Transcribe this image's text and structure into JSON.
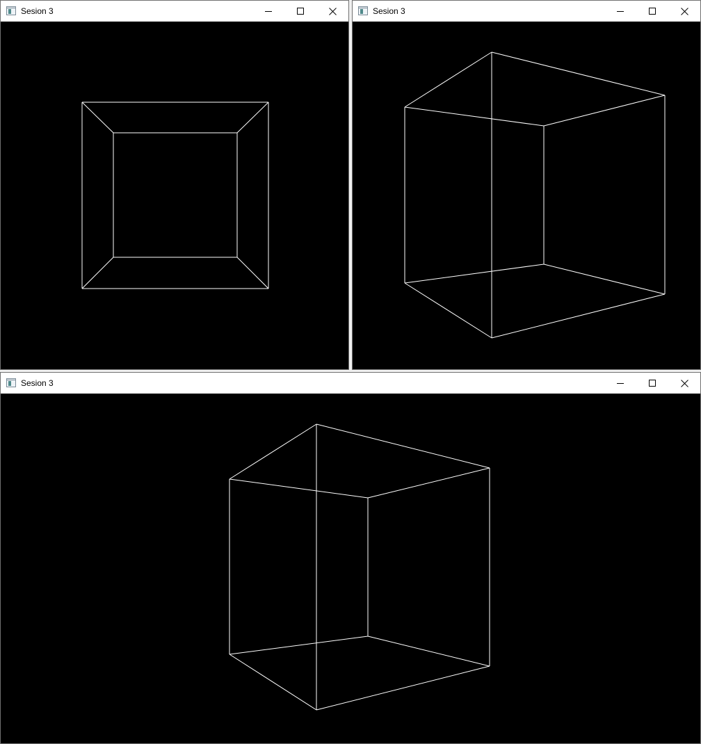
{
  "windows": [
    {
      "id": "win1",
      "title": "Sesion 3",
      "view": "front"
    },
    {
      "id": "win2",
      "title": "Sesion 3",
      "view": "rotated"
    },
    {
      "id": "win3",
      "title": "Sesion 3",
      "view": "rotated-wide"
    }
  ],
  "icons": {
    "app": "app-icon",
    "minimize": "minimize-icon",
    "maximize": "maximize-icon",
    "close": "close-icon"
  },
  "colors": {
    "background": "#000000",
    "wireframe": "#ffffff",
    "titlebar": "#ffffff",
    "border": "#707070"
  }
}
